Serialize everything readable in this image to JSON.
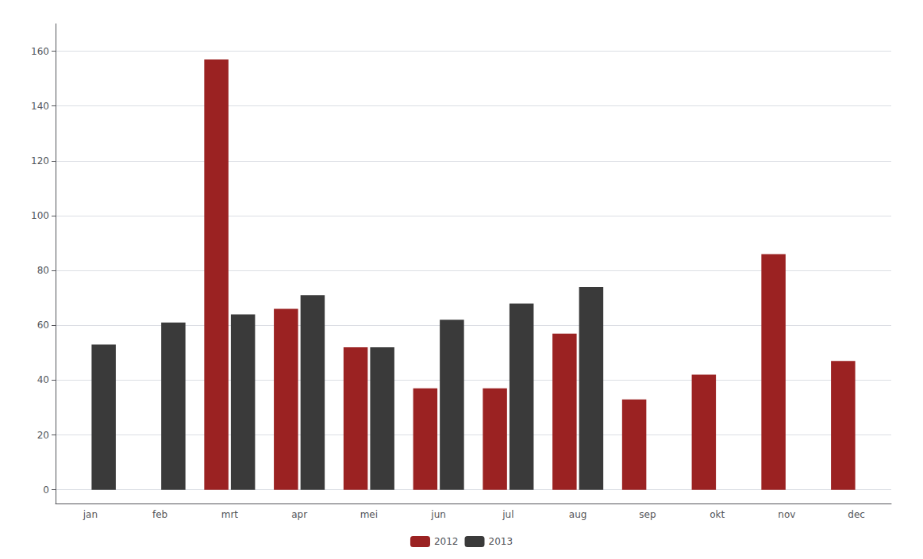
{
  "chart_data": {
    "type": "bar",
    "categories": [
      "jan",
      "feb",
      "mrt",
      "apr",
      "mei",
      "jun",
      "jul",
      "aug",
      "sep",
      "okt",
      "nov",
      "dec"
    ],
    "series": [
      {
        "name": "2012",
        "color": "#9B2222",
        "values": [
          0,
          0,
          157,
          66,
          52,
          37,
          37,
          57,
          33,
          42,
          86,
          47
        ]
      },
      {
        "name": "2013",
        "color": "#3A3A3A",
        "values": [
          53,
          61,
          64,
          71,
          52,
          62,
          68,
          74,
          0,
          0,
          0,
          0
        ]
      }
    ],
    "ylim": [
      -5,
      170
    ],
    "yticks": [
      0,
      20,
      40,
      60,
      80,
      100,
      120,
      140,
      160
    ],
    "grid": true,
    "legend": "bottom"
  }
}
